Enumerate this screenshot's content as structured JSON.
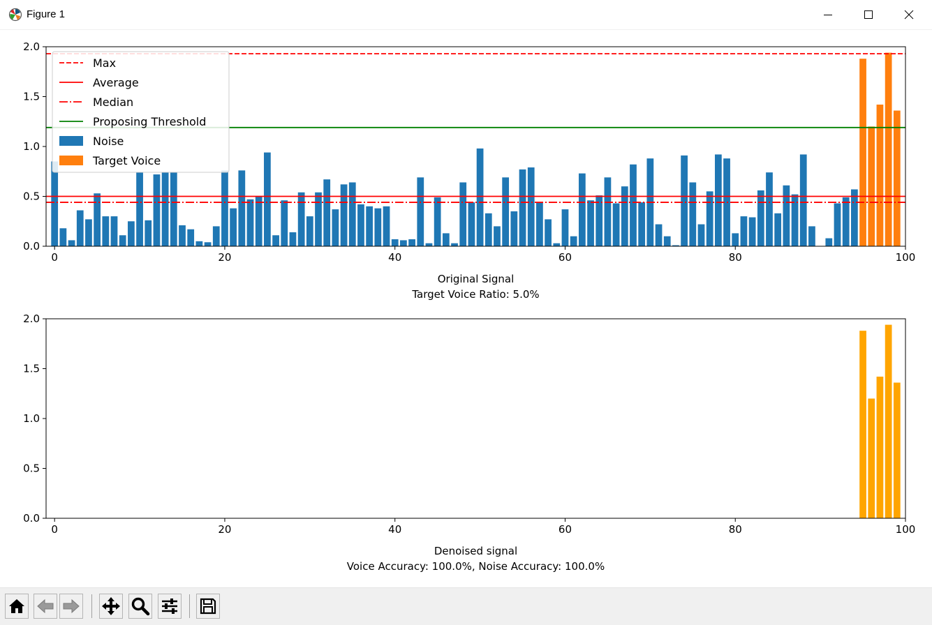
{
  "window": {
    "title": "Figure 1"
  },
  "toolbar": {
    "buttons": [
      "home",
      "back",
      "forward",
      "pan",
      "zoom",
      "configure-subplots",
      "save"
    ]
  },
  "colors": {
    "noise": "#1f77b4",
    "target": "#ff7f0e",
    "denoised": "#ffa500",
    "max": "#ff0000",
    "average": "#ff0000",
    "median": "#ff0000",
    "threshold": "#008000"
  },
  "chart_data": [
    {
      "type": "bar",
      "xlabel": "Original Signal",
      "xlabel2": "Target Voice Ratio: 5.0%",
      "xlim": [
        -1,
        100
      ],
      "ylim": [
        0,
        2.0
      ],
      "xticks": [
        "0",
        "20",
        "40",
        "60",
        "80",
        "100"
      ],
      "yticks": [
        "0.0",
        "0.5",
        "1.0",
        "1.5",
        "2.0"
      ],
      "hlines": {
        "max": 1.93,
        "average": 0.5,
        "median": 0.44,
        "threshold": 1.19
      },
      "legend": {
        "placement": "upper-left",
        "entries": [
          "Max",
          "Average",
          "Median",
          "Proposing Threshold",
          "Noise",
          "Target Voice"
        ]
      },
      "series": [
        {
          "name": "Noise",
          "x_start": 0,
          "values": [
            0.85,
            0.18,
            0.06,
            0.36,
            0.27,
            0.53,
            0.3,
            0.3,
            0.11,
            0.25,
            0.74,
            0.26,
            0.72,
            0.74,
            0.74,
            0.21,
            0.17,
            0.05,
            0.04,
            0.2,
            0.76,
            0.38,
            0.76,
            0.47,
            0.5,
            0.94,
            0.11,
            0.46,
            0.14,
            0.54,
            0.3,
            0.54,
            0.67,
            0.37,
            0.62,
            0.64,
            0.42,
            0.4,
            0.38,
            0.4,
            0.07,
            0.06,
            0.07,
            0.69,
            0.03,
            0.49,
            0.13,
            0.03,
            0.64,
            0.44,
            0.98,
            0.33,
            0.2,
            0.69,
            0.35,
            0.77,
            0.79,
            0.44,
            0.27,
            0.03,
            0.37,
            0.1,
            0.73,
            0.46,
            0.51,
            0.69,
            0.43,
            0.6,
            0.82,
            0.44,
            0.88,
            0.22,
            0.1,
            0.01,
            0.91,
            0.64,
            0.22,
            0.55,
            0.92,
            0.88,
            0.13,
            0.3,
            0.29,
            0.56,
            0.74,
            0.33,
            0.61,
            0.52,
            0.92,
            0.2,
            0.0,
            0.08,
            0.43,
            0.49,
            0.57
          ]
        },
        {
          "name": "Target Voice",
          "x_start": 95,
          "values": [
            1.88,
            1.2,
            1.42,
            1.94,
            1.36
          ]
        }
      ]
    },
    {
      "type": "bar",
      "xlabel": "Denoised signal",
      "xlabel2": "Voice Accuracy: 100.0%, Noise Accuracy: 100.0%",
      "xlim": [
        -1,
        100
      ],
      "ylim": [
        0,
        2.0
      ],
      "xticks": [
        "0",
        "20",
        "40",
        "60",
        "80",
        "100"
      ],
      "yticks": [
        "0.0",
        "0.5",
        "1.0",
        "1.5",
        "2.0"
      ],
      "series": [
        {
          "name": "Denoised",
          "x_start": 95,
          "values": [
            1.88,
            1.2,
            1.42,
            1.94,
            1.36
          ]
        }
      ]
    }
  ]
}
